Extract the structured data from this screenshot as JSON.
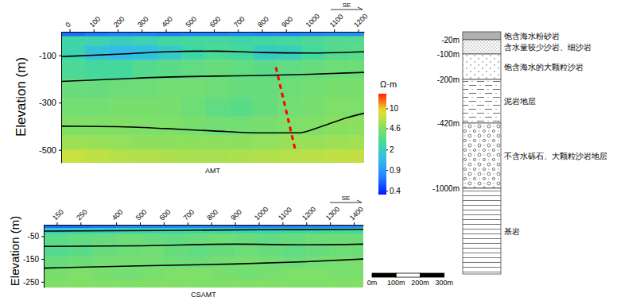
{
  "chart_data": [
    {
      "type": "heatmap",
      "title": "AMT",
      "y_label": "Elevation (m)",
      "direction_label": "SE",
      "xlim": [
        -35,
        1225
      ],
      "xticks": [
        0,
        100,
        200,
        300,
        400,
        500,
        600,
        700,
        800,
        900,
        1000,
        1100,
        1200
      ],
      "ylim": [
        -555,
        0
      ],
      "yticks": [
        -100,
        -300,
        -500
      ],
      "cells": {
        "x_edges": [
          -35,
          65,
          165,
          265,
          365,
          465,
          565,
          665,
          765,
          865,
          965,
          1065,
          1165,
          1225
        ],
        "y_edges": [
          0,
          -20,
          -60,
          -120,
          -200,
          -280,
          -360,
          -440,
          -500,
          -555
        ],
        "values": [
          [
            0.6,
            0.65,
            0.7,
            0.7,
            0.65,
            0.7,
            0.7,
            0.75,
            0.7,
            0.7,
            0.75,
            0.8,
            0.8
          ],
          [
            2.4,
            2.2,
            2.0,
            2.2,
            2.5,
            2.6,
            2.6,
            2.4,
            2.5,
            2.6,
            2.8,
            3.0,
            3.0
          ],
          [
            2.2,
            1.6,
            1.4,
            1.5,
            1.8,
            2.4,
            2.8,
            2.6,
            1.9,
            2.0,
            2.6,
            3.0,
            3.2
          ],
          [
            2.8,
            2.6,
            2.6,
            3.0,
            3.2,
            3.4,
            3.6,
            3.4,
            3.2,
            3.4,
            3.6,
            3.8,
            3.8
          ],
          [
            3.6,
            3.6,
            3.8,
            3.8,
            4.0,
            4.0,
            3.8,
            3.6,
            3.6,
            3.8,
            4.0,
            4.2,
            4.2
          ],
          [
            4.0,
            4.0,
            4.2,
            4.2,
            4.2,
            3.8,
            3.4,
            3.2,
            3.6,
            4.0,
            4.2,
            4.4,
            4.4
          ],
          [
            4.6,
            4.6,
            4.6,
            4.4,
            4.4,
            4.2,
            4.0,
            4.0,
            4.2,
            4.4,
            4.6,
            4.8,
            5.0
          ],
          [
            5.6,
            5.4,
            5.2,
            5.0,
            5.0,
            5.0,
            5.0,
            5.0,
            5.2,
            5.4,
            5.4,
            5.6,
            5.8
          ],
          [
            7.5,
            7.0,
            6.6,
            6.4,
            6.2,
            6.0,
            6.0,
            6.2,
            6.4,
            6.6,
            6.8,
            7.0,
            7.2
          ]
        ]
      },
      "boundaries": [
        {
          "color": "#000000",
          "x": [
            -35,
            200,
            400,
            600,
            800,
            1000,
            1225
          ],
          "y": [
            -105,
            -95,
            -85,
            -82,
            -88,
            -90,
            -85
          ]
        },
        {
          "color": "#000000",
          "x": [
            -35,
            200,
            400,
            600,
            800,
            1000,
            1225
          ],
          "y": [
            -210,
            -200,
            -192,
            -188,
            -185,
            -180,
            -172
          ]
        },
        {
          "color": "#000000",
          "x": [
            -35,
            200,
            400,
            600,
            800,
            950,
            1050,
            1150,
            1225
          ],
          "y": [
            -400,
            -402,
            -410,
            -420,
            -428,
            -428,
            -400,
            -365,
            -345
          ]
        }
      ],
      "fault": {
        "color": "#ff0000",
        "line_style": "dashed",
        "x": [
          858,
          941
        ],
        "y": [
          -150,
          -510
        ]
      }
    },
    {
      "type": "heatmap",
      "title": "CSAMT",
      "y_label": "Elevation (m)",
      "direction_label": "SE",
      "xlim": [
        95,
        1440
      ],
      "xticks": [
        150,
        250,
        400,
        500,
        600,
        700,
        800,
        900,
        1000,
        1100,
        1200,
        1300,
        1400
      ],
      "ylim": [
        -275,
        0
      ],
      "yticks": [
        -50,
        -150,
        -250
      ],
      "cells": {
        "x_edges": [
          95,
          200,
          300,
          400,
          500,
          600,
          700,
          800,
          900,
          1000,
          1100,
          1200,
          1300,
          1400,
          1440
        ],
        "y_edges": [
          0,
          -15,
          -40,
          -90,
          -140,
          -190,
          -240,
          -275
        ],
        "values": [
          [
            0.6,
            0.6,
            0.65,
            0.7,
            0.7,
            0.7,
            0.7,
            0.7,
            0.65,
            0.7,
            0.7,
            0.7,
            0.75,
            0.75
          ],
          [
            1.8,
            2.0,
            2.0,
            2.2,
            2.2,
            2.2,
            2.4,
            2.4,
            2.2,
            2.2,
            2.4,
            2.4,
            2.6,
            2.6
          ],
          [
            3.2,
            3.4,
            3.6,
            3.8,
            3.6,
            3.4,
            3.6,
            3.8,
            3.6,
            3.4,
            3.6,
            3.8,
            3.8,
            3.8
          ],
          [
            3.0,
            3.2,
            3.6,
            3.8,
            4.0,
            3.6,
            3.4,
            3.6,
            3.8,
            3.6,
            3.4,
            3.6,
            3.8,
            3.8
          ],
          [
            3.6,
            3.8,
            4.0,
            4.2,
            4.0,
            3.8,
            3.8,
            4.0,
            4.2,
            4.0,
            3.8,
            4.0,
            4.2,
            4.2
          ],
          [
            4.2,
            4.4,
            4.2,
            4.0,
            4.2,
            4.4,
            4.4,
            4.2,
            4.0,
            4.2,
            4.4,
            4.4,
            4.2,
            4.2
          ],
          [
            4.4,
            4.6,
            4.4,
            4.4,
            4.6,
            4.6,
            4.4,
            4.4,
            4.6,
            4.6,
            4.4,
            4.4,
            4.6,
            4.6
          ]
        ]
      },
      "boundaries": [
        {
          "color": "#000000",
          "x": [
            95,
            600,
            1000,
            1440
          ],
          "y": [
            -28,
            -25,
            -22,
            -20
          ]
        },
        {
          "color": "#000000",
          "x": [
            95,
            500,
            900,
            1200,
            1440
          ],
          "y": [
            -95,
            -92,
            -85,
            -88,
            -85
          ]
        },
        {
          "color": "#000000",
          "x": [
            95,
            500,
            900,
            1200,
            1440
          ],
          "y": [
            -190,
            -180,
            -172,
            -162,
            -150
          ]
        }
      ]
    }
  ],
  "colorbar": {
    "title": "Ω·m",
    "log": true,
    "range": [
      0.35,
      18
    ],
    "ticks": [
      0.4,
      0.9,
      2,
      4.6,
      10
    ]
  },
  "scale_bar": {
    "ticks": [
      {
        "value": 0,
        "label": "0m"
      },
      {
        "value": 100,
        "label": "100m"
      },
      {
        "value": 200,
        "label": "200m"
      },
      {
        "value": 300,
        "label": "300m"
      }
    ]
  },
  "strat_column": {
    "layers": [
      {
        "label": "饱含海水粉砂岩",
        "base": "-20m"
      },
      {
        "label": "含水量较少沙岩、细沙岩",
        "base": "-100m"
      },
      {
        "label": "饱含海水的大颗粒沙岩",
        "base": "-200m"
      },
      {
        "label": "泥岩地层",
        "base": "-420m"
      },
      {
        "label": "不含水砾石、大颗粒沙岩地层",
        "base": "-1000m"
      },
      {
        "label": "基岩"
      }
    ]
  }
}
